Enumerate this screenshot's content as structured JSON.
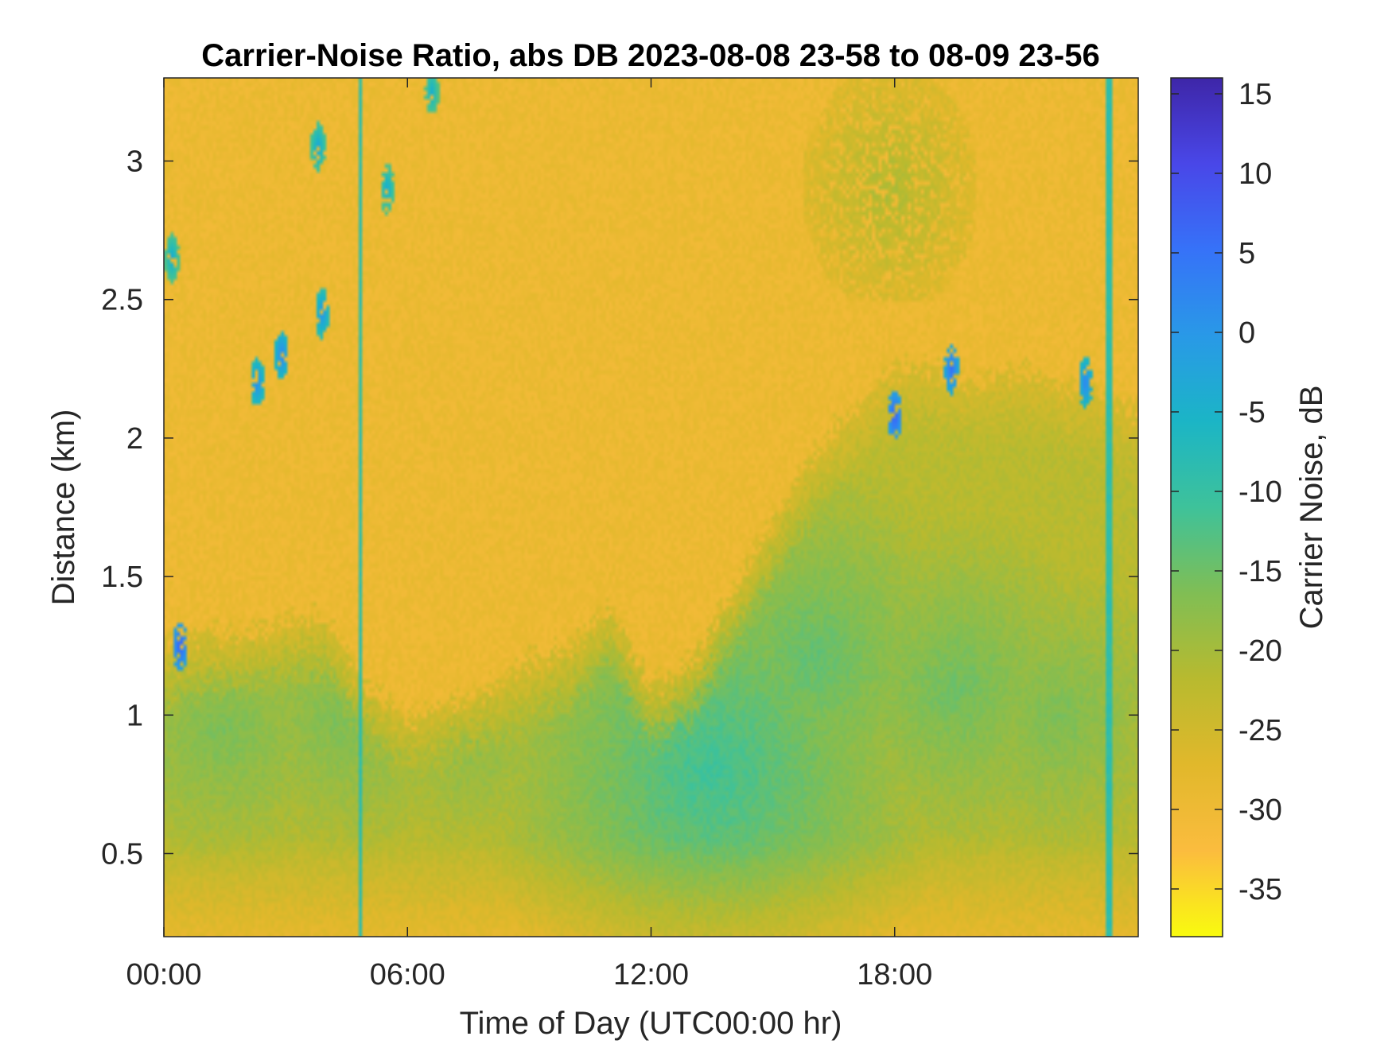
{
  "chart_data": {
    "type": "heatmap",
    "title": "Carrier-Noise Ratio, abs DB 2023-08-08 23-58 to 08-09 23-56",
    "xlabel": "Time of Day (UTC00:00 hr)",
    "ylabel": "Distance (km)",
    "colorbar_label": "Carrier Noise, dB",
    "xlim_hours": [
      0,
      24
    ],
    "ylim_km": [
      0.2,
      3.3
    ],
    "clim_db": [
      -38,
      16
    ],
    "x_ticks": [
      {
        "hours": 0,
        "label": "00:00"
      },
      {
        "hours": 6,
        "label": "06:00"
      },
      {
        "hours": 12,
        "label": "12:00"
      },
      {
        "hours": 18,
        "label": "18:00"
      }
    ],
    "y_ticks": [
      {
        "value": 0.5,
        "label": "0.5"
      },
      {
        "value": 1,
        "label": "1"
      },
      {
        "value": 1.5,
        "label": "1.5"
      },
      {
        "value": 2,
        "label": "2"
      },
      {
        "value": 2.5,
        "label": "2.5"
      },
      {
        "value": 3,
        "label": "3"
      }
    ],
    "colorbar_ticks": [
      {
        "value": 15,
        "label": "15"
      },
      {
        "value": 10,
        "label": "10"
      },
      {
        "value": 5,
        "label": "5"
      },
      {
        "value": 0,
        "label": "0"
      },
      {
        "value": -5,
        "label": "-5"
      },
      {
        "value": -10,
        "label": "-10"
      },
      {
        "value": -15,
        "label": "-15"
      },
      {
        "value": -20,
        "label": "-20"
      },
      {
        "value": -25,
        "label": "-25"
      },
      {
        "value": -30,
        "label": "-30"
      },
      {
        "value": -35,
        "label": "-35"
      }
    ],
    "colormap": "parula",
    "colormap_stops": [
      "#f9fb0e",
      "#fbbc3e",
      "#e1b82b",
      "#b8ba2f",
      "#80be54",
      "#3ec29a",
      "#1bb5c6",
      "#2999e7",
      "#3672f8",
      "#4947e8",
      "#3e26a8"
    ],
    "boundary_layer_top_km": [
      [
        0,
        1.25
      ],
      [
        1,
        1.3
      ],
      [
        2,
        1.3
      ],
      [
        3,
        1.35
      ],
      [
        4,
        1.35
      ],
      [
        5,
        1.1
      ],
      [
        6,
        1.0
      ],
      [
        7,
        1.05
      ],
      [
        8,
        1.1
      ],
      [
        9,
        1.2
      ],
      [
        10,
        1.25
      ],
      [
        11,
        1.4
      ],
      [
        12,
        1.1
      ],
      [
        13,
        1.2
      ],
      [
        14,
        1.45
      ],
      [
        15,
        1.7
      ],
      [
        16,
        1.95
      ],
      [
        17,
        2.1
      ],
      [
        18,
        2.25
      ],
      [
        19,
        2.25
      ],
      [
        20,
        2.2
      ],
      [
        21,
        2.25
      ],
      [
        22,
        2.2
      ],
      [
        23,
        2.15
      ],
      [
        24,
        2.1
      ]
    ],
    "boundary_layer_core": [
      {
        "hours": 1.5,
        "km": 0.95,
        "db": -16
      },
      {
        "hours": 4.5,
        "km": 1.0,
        "db": -16
      },
      {
        "hours": 7.5,
        "km": 0.95,
        "db": -17
      },
      {
        "hours": 13.5,
        "km": 0.8,
        "db": -11
      },
      {
        "hours": 16,
        "km": 1.2,
        "db": -14
      },
      {
        "hours": 19.5,
        "km": 1.1,
        "db": -15
      },
      {
        "hours": 22,
        "km": 1.0,
        "db": -16
      }
    ],
    "elevated_layer": {
      "hours": [
        15.8,
        20
      ],
      "km": [
        2.5,
        3.3
      ],
      "db": -21
    },
    "streak_times_hours": [
      4.85,
      23.3
    ],
    "high_snr_patches": [
      {
        "hours": 0.2,
        "km": 2.65,
        "db": -3
      },
      {
        "hours": 0.4,
        "km": 1.25,
        "db": 8
      },
      {
        "hours": 2.3,
        "km": 2.2,
        "db": 2
      },
      {
        "hours": 2.9,
        "km": 2.3,
        "db": 3
      },
      {
        "hours": 3.9,
        "km": 2.45,
        "db": 1
      },
      {
        "hours": 3.8,
        "km": 3.05,
        "db": -2
      },
      {
        "hours": 5.5,
        "km": 2.9,
        "db": -3
      },
      {
        "hours": 6.6,
        "km": 3.25,
        "db": -4
      },
      {
        "hours": 18.0,
        "km": 2.08,
        "db": 8
      },
      {
        "hours": 19.4,
        "km": 2.25,
        "db": 6
      },
      {
        "hours": 22.7,
        "km": 2.2,
        "db": 3
      }
    ]
  }
}
